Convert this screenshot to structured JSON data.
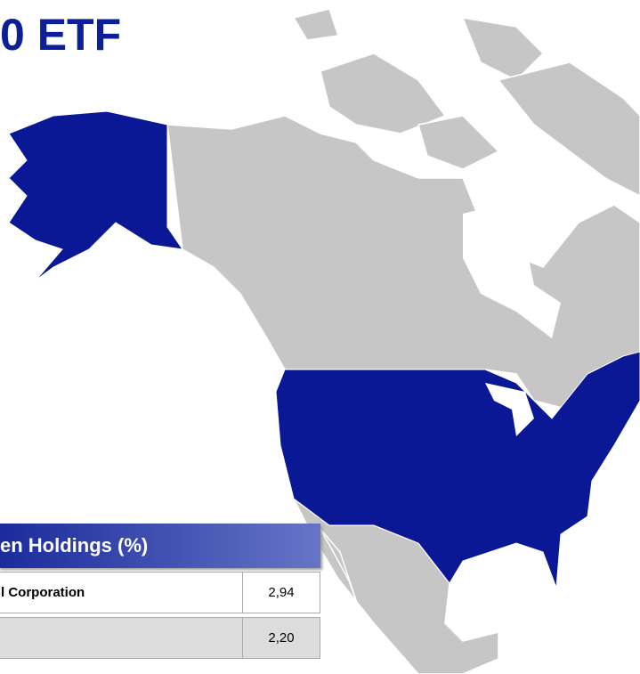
{
  "title": "0 ETF",
  "table": {
    "header": "en Holdings (%)",
    "rows": [
      {
        "name": "l Corporation",
        "value": "2,94"
      },
      {
        "value": "2,20"
      }
    ]
  }
}
